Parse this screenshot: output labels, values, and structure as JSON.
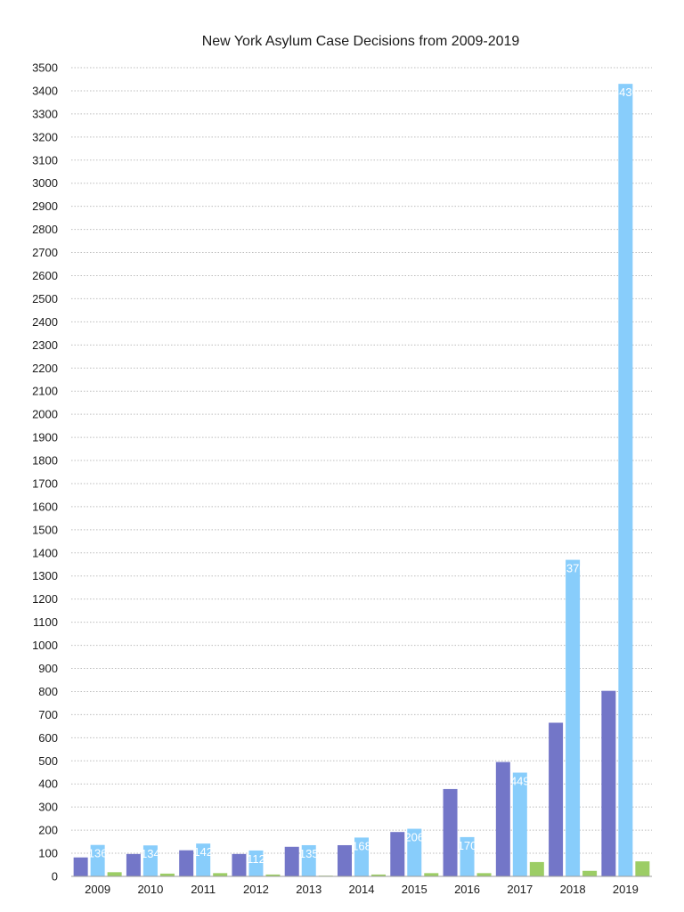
{
  "chart_data": {
    "type": "bar",
    "title": "New York Asylum Case Decisions from 2009-2019",
    "xlabel": "",
    "ylabel": "",
    "categories": [
      "2009",
      "2010",
      "2011",
      "2012",
      "2013",
      "2014",
      "2015",
      "2016",
      "2017",
      "2018",
      "2019"
    ],
    "ylim": [
      0,
      3500
    ],
    "y_ticks": [
      0,
      100,
      200,
      300,
      400,
      500,
      600,
      700,
      800,
      900,
      1000,
      1100,
      1200,
      1300,
      1400,
      1500,
      1600,
      1700,
      1800,
      1900,
      2000,
      2100,
      2200,
      2300,
      2400,
      2500,
      2600,
      2700,
      2800,
      2900,
      3000,
      3100,
      3200,
      3300,
      3400,
      3500
    ],
    "grid": true,
    "legend": "none",
    "series": [
      {
        "color": "#7376c8",
        "values": [
          82,
          97,
          113,
          97,
          128,
          135,
          192,
          378,
          495,
          665,
          803
        ],
        "labels": [
          "",
          "",
          "",
          "",
          "",
          "",
          "",
          "",
          "",
          "",
          ""
        ]
      },
      {
        "color": "#88cdfb",
        "values": [
          136,
          134,
          142,
          112,
          135,
          168,
          206,
          170,
          449,
          1370,
          3430
        ],
        "labels": [
          "136",
          "134",
          "142",
          "112",
          "135",
          "168",
          "206",
          "170",
          "449",
          "1370",
          "3430"
        ]
      },
      {
        "color": "#9ccd65",
        "values": [
          18,
          12,
          14,
          8,
          3,
          8,
          14,
          14,
          62,
          24,
          65
        ],
        "labels": [
          "",
          "",
          "",
          "",
          "",
          "",
          "",
          "",
          "",
          "",
          ""
        ]
      }
    ]
  }
}
